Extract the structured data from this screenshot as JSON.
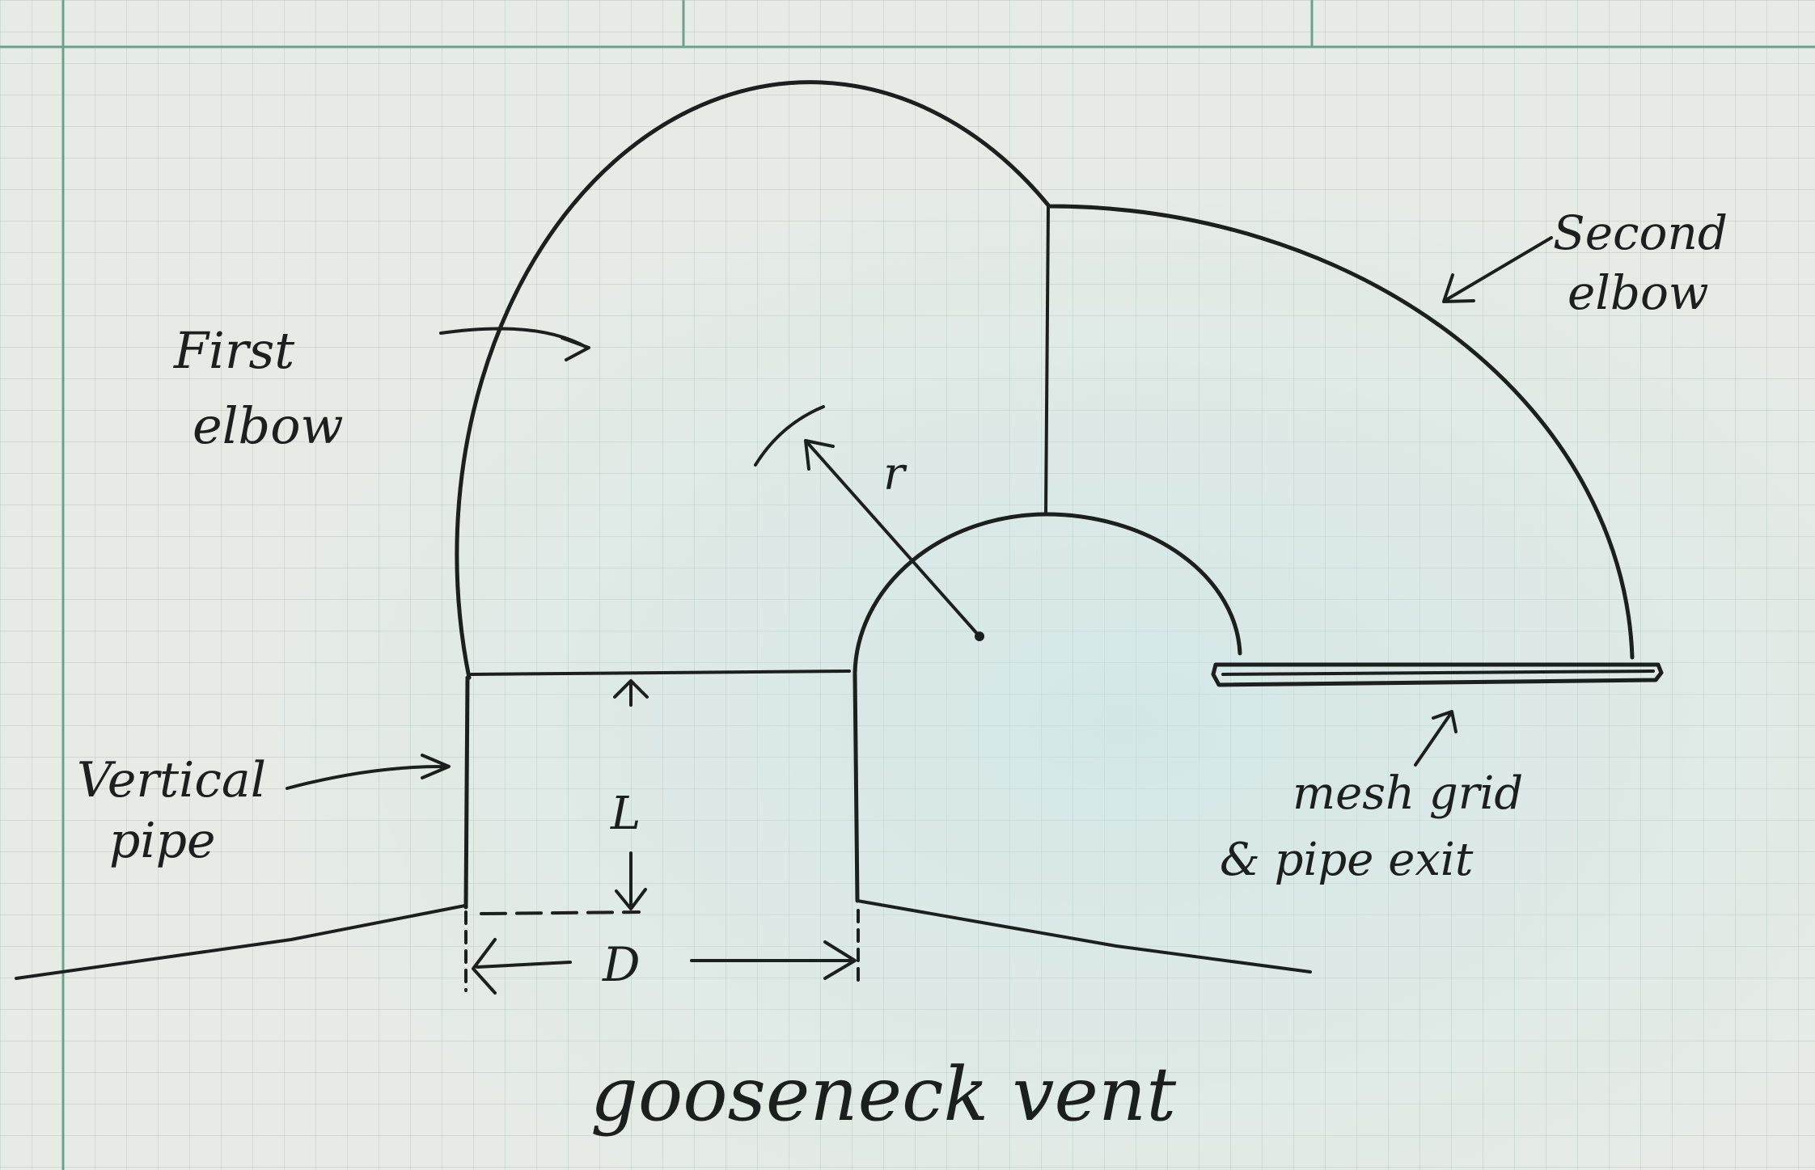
{
  "labels": {
    "first_elbow": [
      "First",
      "elbow"
    ],
    "second_elbow": [
      "Second",
      "elbow"
    ],
    "vertical_pipe": [
      "Vertical",
      "pipe"
    ],
    "mesh_grid": [
      "mesh grid",
      "& pipe exit"
    ],
    "radius": "r",
    "length": "L",
    "diameter": "D",
    "caption": "gooseneck vent"
  },
  "colors": {
    "ink": "#1b1f1d",
    "paper": "#e6ebe6",
    "grid_major": "#6fa08e"
  }
}
